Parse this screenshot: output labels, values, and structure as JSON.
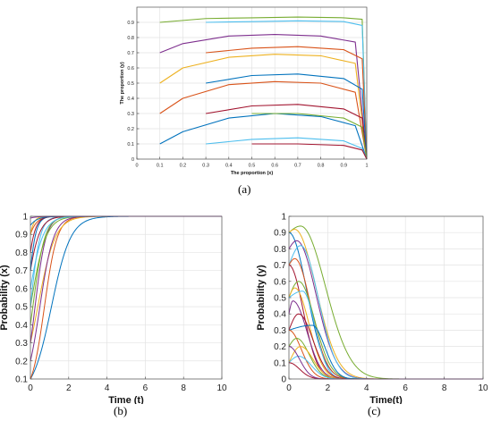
{
  "panels": {
    "a": {
      "label": "(a)"
    },
    "b": {
      "label": "(b)"
    },
    "c": {
      "label": "(c)"
    }
  },
  "chart_data": [
    {
      "id": "a",
      "type": "line",
      "title": "",
      "xlabel": "The proportion (x)",
      "ylabel": "The proportion (y)",
      "xlim": [
        0,
        1
      ],
      "ylim": [
        0,
        1
      ],
      "xticks": [
        "0",
        "0.1",
        "0.2",
        "0.3",
        "0.4",
        "0.5",
        "0.6",
        "0.7",
        "0.8",
        "0.9",
        "1"
      ],
      "yticks": [
        "0",
        "0.1",
        "0.2",
        "0.3",
        "0.4",
        "0.5",
        "0.6",
        "0.7",
        "0.8",
        "0.9"
      ],
      "grid": true,
      "series": [
        {
          "color": "#77ac30",
          "x": [
            0.1,
            0.3,
            0.5,
            0.7,
            0.9,
            0.98,
            1.0
          ],
          "y": [
            0.9,
            0.925,
            0.93,
            0.935,
            0.93,
            0.92,
            0.0
          ]
        },
        {
          "color": "#4dbeee",
          "x": [
            0.3,
            0.5,
            0.7,
            0.9,
            0.98,
            1.0
          ],
          "y": [
            0.9,
            0.905,
            0.91,
            0.905,
            0.88,
            0.0
          ]
        },
        {
          "color": "#7e2f8e",
          "x": [
            0.1,
            0.2,
            0.4,
            0.6,
            0.8,
            0.95,
            1.0
          ],
          "y": [
            0.7,
            0.76,
            0.81,
            0.82,
            0.81,
            0.77,
            0.0
          ]
        },
        {
          "color": "#d95319",
          "x": [
            0.3,
            0.5,
            0.7,
            0.9,
            0.98,
            1.0
          ],
          "y": [
            0.7,
            0.73,
            0.74,
            0.72,
            0.66,
            0.0
          ]
        },
        {
          "color": "#edb120",
          "x": [
            0.1,
            0.2,
            0.4,
            0.6,
            0.8,
            0.95,
            1.0
          ],
          "y": [
            0.5,
            0.6,
            0.67,
            0.69,
            0.68,
            0.63,
            0.0
          ]
        },
        {
          "color": "#0072bd",
          "x": [
            0.3,
            0.5,
            0.7,
            0.9,
            0.98,
            1.0
          ],
          "y": [
            0.5,
            0.55,
            0.56,
            0.53,
            0.46,
            0.0
          ]
        },
        {
          "color": "#d95319",
          "x": [
            0.1,
            0.2,
            0.4,
            0.6,
            0.8,
            0.95,
            1.0
          ],
          "y": [
            0.3,
            0.4,
            0.49,
            0.51,
            0.5,
            0.44,
            0.0
          ]
        },
        {
          "color": "#a2142f",
          "x": [
            0.3,
            0.5,
            0.7,
            0.9,
            0.98,
            1.0
          ],
          "y": [
            0.3,
            0.35,
            0.36,
            0.33,
            0.27,
            0.0
          ]
        },
        {
          "color": "#0072bd",
          "x": [
            0.1,
            0.2,
            0.4,
            0.6,
            0.8,
            0.95,
            1.0
          ],
          "y": [
            0.1,
            0.18,
            0.27,
            0.3,
            0.28,
            0.22,
            0.0
          ]
        },
        {
          "color": "#77ac30",
          "x": [
            0.5,
            0.7,
            0.9,
            0.98,
            1.0
          ],
          "y": [
            0.3,
            0.3,
            0.27,
            0.21,
            0.0
          ]
        },
        {
          "color": "#4dbeee",
          "x": [
            0.3,
            0.5,
            0.7,
            0.9,
            0.98,
            1.0
          ],
          "y": [
            0.1,
            0.13,
            0.14,
            0.12,
            0.07,
            0.0
          ]
        },
        {
          "color": "#a2142f",
          "x": [
            0.5,
            0.7,
            0.9,
            0.98,
            1.0
          ],
          "y": [
            0.1,
            0.1,
            0.09,
            0.06,
            0.0
          ]
        }
      ]
    },
    {
      "id": "b",
      "type": "line",
      "title": "",
      "xlabel": "Time (t)",
      "ylabel": "Probability (x)",
      "xlim": [
        0,
        10
      ],
      "ylim": [
        0.1,
        1
      ],
      "xticks": [
        "0",
        "2",
        "4",
        "6",
        "8",
        "10"
      ],
      "yticks": [
        "0.1",
        "0.2",
        "0.3",
        "0.4",
        "0.5",
        "0.6",
        "0.7",
        "0.8",
        "0.9",
        "1"
      ],
      "grid": true,
      "model": "logistic",
      "series": [
        {
          "color": "#0072bd",
          "x0": 0.1,
          "rate": 2.0
        },
        {
          "color": "#d95319",
          "x0": 0.1,
          "rate": 3.0
        },
        {
          "color": "#edb120",
          "x0": 0.3,
          "rate": 2.2
        },
        {
          "color": "#7e2f8e",
          "x0": 0.3,
          "rate": 3.5
        },
        {
          "color": "#77ac30",
          "x0": 0.5,
          "rate": 2.5
        },
        {
          "color": "#4dbeee",
          "x0": 0.5,
          "rate": 4.0
        },
        {
          "color": "#a2142f",
          "x0": 0.7,
          "rate": 3.0
        },
        {
          "color": "#0072bd",
          "x0": 0.7,
          "rate": 5.0
        },
        {
          "color": "#d95319",
          "x0": 0.9,
          "rate": 3.5
        },
        {
          "color": "#edb120",
          "x0": 0.9,
          "rate": 6.0
        },
        {
          "color": "#7e2f8e",
          "x0": 0.2,
          "rate": 2.8
        },
        {
          "color": "#77ac30",
          "x0": 0.4,
          "rate": 3.2
        },
        {
          "color": "#4dbeee",
          "x0": 0.6,
          "rate": 2.6
        },
        {
          "color": "#a2142f",
          "x0": 0.8,
          "rate": 4.5
        },
        {
          "color": "#0072bd",
          "x0": 0.95,
          "rate": 3.0
        },
        {
          "color": "#7e2f8e",
          "x0": 0.99,
          "rate": 3.0
        }
      ]
    },
    {
      "id": "c",
      "type": "line",
      "title": "",
      "xlabel": "Time(t)",
      "ylabel": "Probability (y)",
      "xlim": [
        0,
        10
      ],
      "ylim": [
        0,
        1
      ],
      "xticks": [
        "0",
        "2",
        "4",
        "6",
        "8",
        "10"
      ],
      "yticks": [
        "0",
        "0.1",
        "0.2",
        "0.3",
        "0.4",
        "0.5",
        "0.6",
        "0.7",
        "0.8",
        "0.9",
        "1"
      ],
      "grid": true,
      "model": "bell",
      "series": [
        {
          "color": "#77ac30",
          "y0": 0.9,
          "peak": 0.94,
          "tpeak": 0.6,
          "decay": 1.4
        },
        {
          "color": "#edb120",
          "y0": 0.9,
          "peak": 0.92,
          "tpeak": 0.3,
          "decay": 1.2
        },
        {
          "color": "#0072bd",
          "y0": 0.9,
          "peak": 0.9,
          "tpeak": 0.0,
          "decay": 1.0
        },
        {
          "color": "#7e2f8e",
          "y0": 0.8,
          "peak": 0.85,
          "tpeak": 0.4,
          "decay": 1.1
        },
        {
          "color": "#4dbeee",
          "y0": 0.7,
          "peak": 0.82,
          "tpeak": 0.6,
          "decay": 1.0
        },
        {
          "color": "#d95319",
          "y0": 0.7,
          "peak": 0.74,
          "tpeak": 0.3,
          "decay": 0.9
        },
        {
          "color": "#a2142f",
          "y0": 0.7,
          "peak": 0.7,
          "tpeak": 0.0,
          "decay": 0.8
        },
        {
          "color": "#77ac30",
          "y0": 0.5,
          "peak": 0.6,
          "tpeak": 0.5,
          "decay": 0.9
        },
        {
          "color": "#edb120",
          "y0": 0.5,
          "peak": 0.56,
          "tpeak": 0.3,
          "decay": 0.8
        },
        {
          "color": "#4dbeee",
          "y0": 0.5,
          "peak": 0.54,
          "tpeak": 0.7,
          "decay": 0.7
        },
        {
          "color": "#7e2f8e",
          "y0": 0.4,
          "peak": 0.48,
          "tpeak": 0.2,
          "decay": 0.8
        },
        {
          "color": "#a2142f",
          "y0": 0.3,
          "peak": 0.4,
          "tpeak": 0.5,
          "decay": 0.8
        },
        {
          "color": "#0072bd",
          "y0": 0.3,
          "peak": 0.33,
          "tpeak": 1.2,
          "decay": 0.7
        },
        {
          "color": "#d95319",
          "y0": 0.3,
          "peak": 0.3,
          "tpeak": 0.0,
          "decay": 0.7
        },
        {
          "color": "#77ac30",
          "y0": 0.2,
          "peak": 0.25,
          "tpeak": 0.4,
          "decay": 0.7
        },
        {
          "color": "#edb120",
          "y0": 0.1,
          "peak": 0.2,
          "tpeak": 0.6,
          "decay": 0.7
        },
        {
          "color": "#4dbeee",
          "y0": 0.1,
          "peak": 0.14,
          "tpeak": 0.5,
          "decay": 0.7
        },
        {
          "color": "#a2142f",
          "y0": 0.1,
          "peak": 0.1,
          "tpeak": 0.0,
          "decay": 0.6
        },
        {
          "color": "#7e2f8e",
          "y0": 0.2,
          "peak": 0.2,
          "tpeak": 0.0,
          "decay": 0.6
        }
      ]
    }
  ]
}
